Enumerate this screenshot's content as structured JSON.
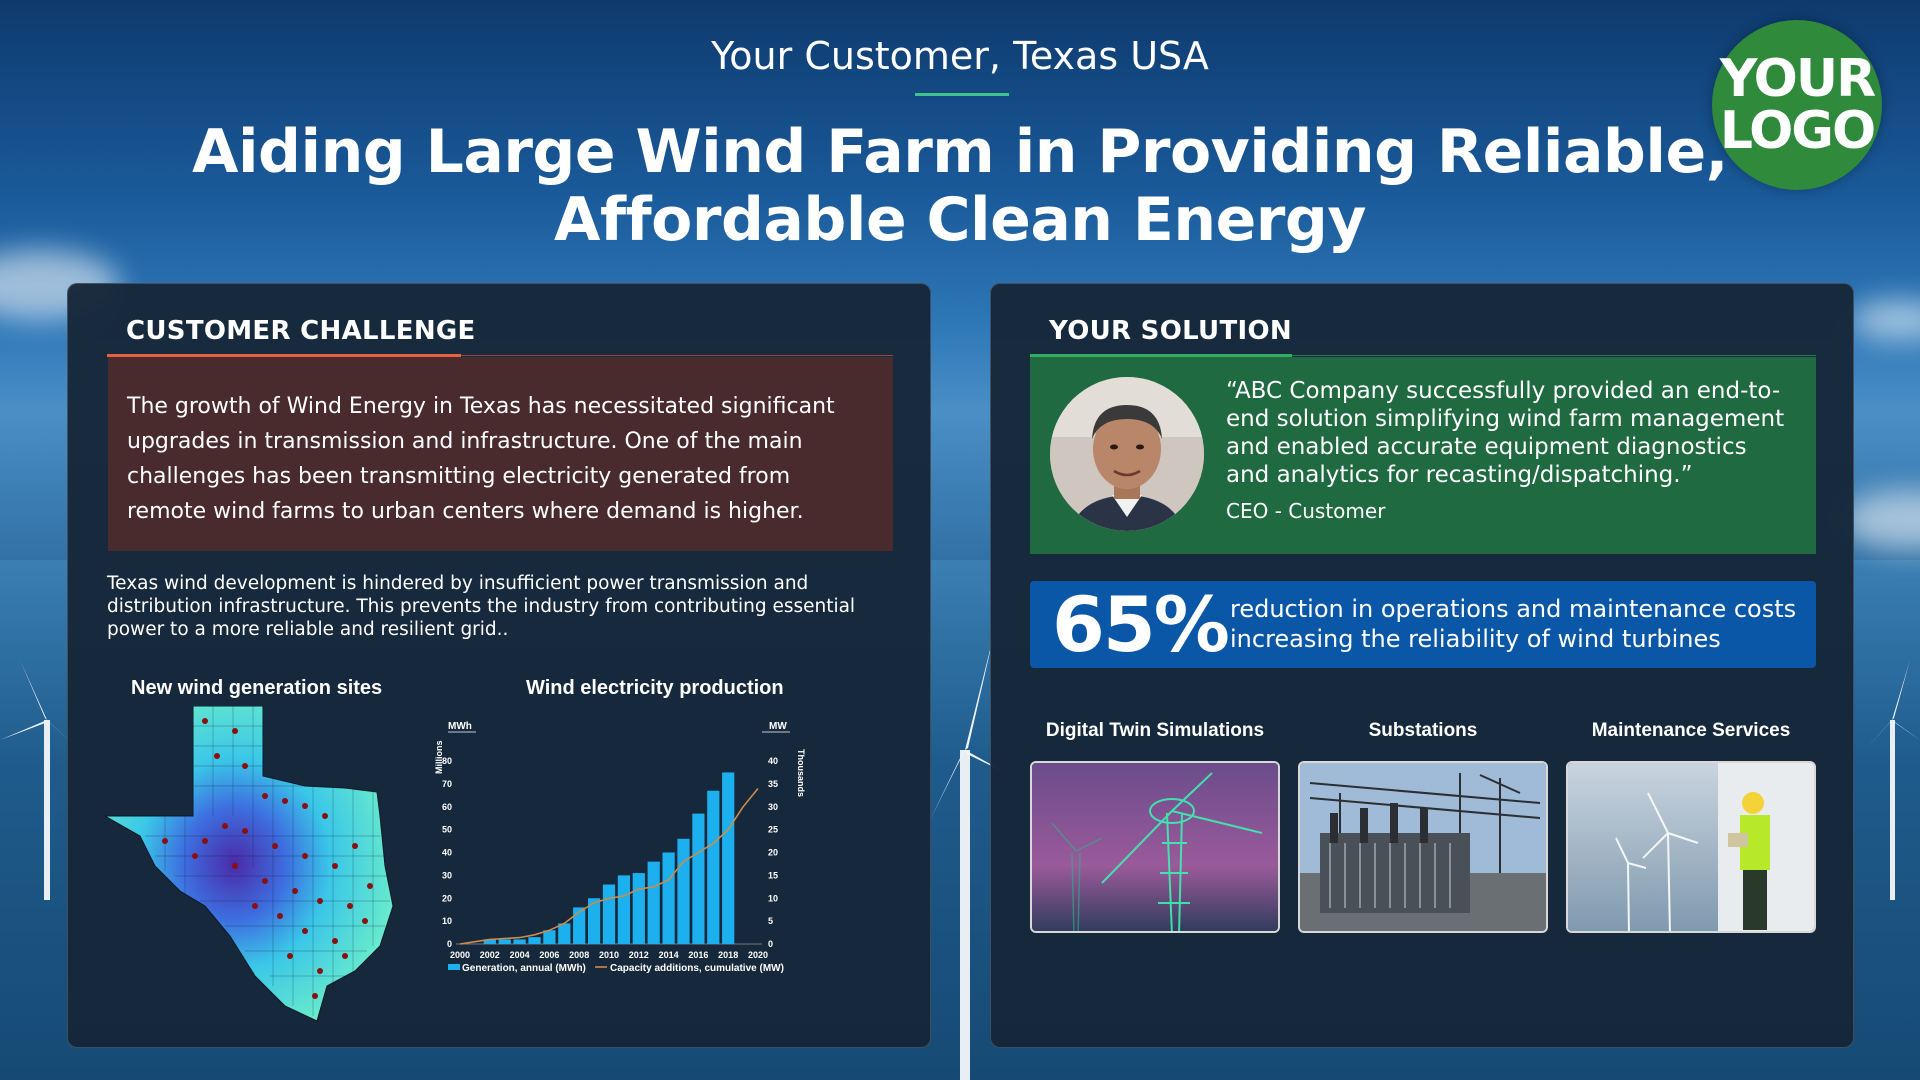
{
  "header": {
    "eyebrow": "Your Customer, Texas USA",
    "title_line1": "Aiding Large Wind Farm in Providing Reliable,",
    "title_line2": "Affordable Clean Energy",
    "logo_line1": "YOUR",
    "logo_line2": "LOGO"
  },
  "colors": {
    "challenge_accent": "#e8613f",
    "solution_accent": "#2fae5f",
    "challenge_box": "#4a2b2d",
    "quote_box": "#1f6a40",
    "stat_box": "#0b57a7",
    "bar_color": "#1cb0ee",
    "line_color": "#d08a4a"
  },
  "challenge": {
    "title": "CUSTOMER CHALLENGE",
    "box_text": "The growth of Wind Energy in Texas has necessitated significant upgrades in transmission and infrastructure. One of the main challenges has been transmitting electricity generated from remote wind farms to urban centers where demand is higher.",
    "sub_text": "Texas wind development is hindered by insufficient power transmission and distribution infrastructure. This prevents the industry from contributing essential power to a more reliable and resilient grid..",
    "map_title": "New wind generation sites",
    "chart_title": "Wind electricity production"
  },
  "solution": {
    "title": "YOUR SOLUTION",
    "quote": "“ABC Company successfully provided an end-to-end solution simplifying wind farm management and enabled accurate equipment diagnostics and analytics for recasting/dispatching.”",
    "quote_attr": "CEO - Customer",
    "stat_value": "65%",
    "stat_text": "reduction in operations and maintenance costs increasing the reliability of wind turbines",
    "services": [
      {
        "label": "Digital Twin Simulations"
      },
      {
        "label": "Substations"
      },
      {
        "label": "Maintenance Services"
      }
    ]
  },
  "chart_data": {
    "type": "bar",
    "title": "Wind electricity production",
    "categories": [
      "2000",
      "2001",
      "2002",
      "2003",
      "2004",
      "2005",
      "2006",
      "2007",
      "2008",
      "2009",
      "2010",
      "2011",
      "2012",
      "2013",
      "2014",
      "2015",
      "2016",
      "2017",
      "2018",
      "2019",
      "2020"
    ],
    "x_tick_labels": [
      "2000",
      "2002",
      "2004",
      "2006",
      "2008",
      "2010",
      "2012",
      "2014",
      "2016",
      "2018",
      "2020"
    ],
    "y_left": {
      "unit": "MWh",
      "label": "Millions",
      "ticks": [
        "0",
        "10",
        "20",
        "30",
        "40",
        "50",
        "60",
        "70",
        "80"
      ],
      "ylim": [
        0,
        80
      ]
    },
    "y_right": {
      "unit": "MW",
      "label": "Thousands",
      "ticks": [
        "0",
        "5",
        "10",
        "15",
        "20",
        "25",
        "30",
        "35",
        "40"
      ],
      "ylim": [
        0,
        40
      ]
    },
    "series": [
      {
        "name": "Generation, annual (MWh)",
        "type": "bar",
        "values": [
          null,
          null,
          2,
          2,
          2,
          3,
          6,
          9,
          16,
          20,
          26,
          30,
          31,
          36,
          40,
          46,
          57,
          67,
          75,
          null,
          null
        ]
      },
      {
        "name": "Capacity additions, cumulative (MW)",
        "type": "line",
        "values": [
          0,
          0.5,
          1,
          1.2,
          1.4,
          2,
          3,
          4.5,
          7,
          9,
          10,
          10.5,
          12,
          12.5,
          14,
          18,
          20,
          22,
          25,
          30,
          34
        ]
      }
    ],
    "legend": "bottom"
  }
}
